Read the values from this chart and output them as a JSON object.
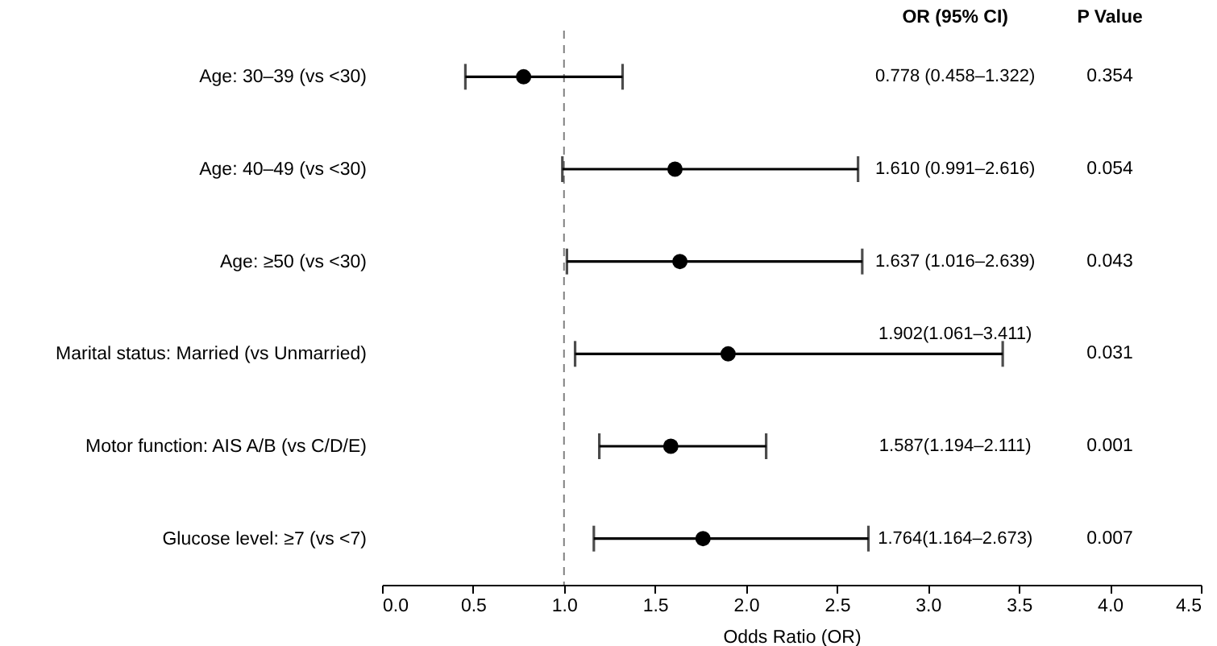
{
  "chart_data": {
    "type": "scatter",
    "xlabel": "Odds Ratio (OR)",
    "categories": [
      "Age: 30–39 (vs <30)",
      "Age: 40–49 (vs <30)",
      "Age: ≥50 (vs <30)",
      "Marital status: Married (vs Unmarried)",
      "Motor function: AIS A/B (vs C/D/E)",
      "Glucose level: ≥7 (vs <7)"
    ],
    "values": [
      0.778,
      1.61,
      1.637,
      1.902,
      1.587,
      1.764
    ],
    "errors": [
      [
        0.458,
        1.322
      ],
      [
        0.991,
        2.616
      ],
      [
        1.016,
        2.639
      ],
      [
        1.061,
        3.411
      ],
      [
        1.194,
        2.111
      ],
      [
        1.164,
        2.673
      ]
    ],
    "color": "#000000",
    "marker": "circle",
    "orientation": "horizontal",
    "annotations": [
      "OR (95% CI)",
      "P Value",
      "0.778 (0.458–1.322)",
      "1.610 (0.991–2.616)",
      "1.637 (1.016–2.639)",
      "1.902(1.061–3.411)",
      "1.587(1.194–2.111)",
      "1.764(1.164–2.673)",
      "0.354",
      "0.054",
      "0.043",
      "0.031",
      "0.001",
      "0.007"
    ],
    "xlim": [
      0,
      4.5
    ],
    "xticks": [
      {
        "value": 0,
        "label": "0.0"
      },
      {
        "value": 0.5,
        "label": "0.5"
      },
      {
        "value": 1,
        "label": "1.0"
      },
      {
        "value": 1.5,
        "label": "1.5"
      },
      {
        "value": 2,
        "label": "2.0"
      },
      {
        "value": 2.5,
        "label": "2.5"
      },
      {
        "value": 3,
        "label": "3.0"
      },
      {
        "value": 3.5,
        "label": "3.5"
      },
      {
        "value": 4,
        "label": "4.0"
      },
      {
        "value": 4.5,
        "label": "4.5"
      }
    ],
    "ref_lines": [
      {
        "axis": "x",
        "value": 1,
        "line_style": "dashed",
        "color": "#808080"
      }
    ]
  }
}
